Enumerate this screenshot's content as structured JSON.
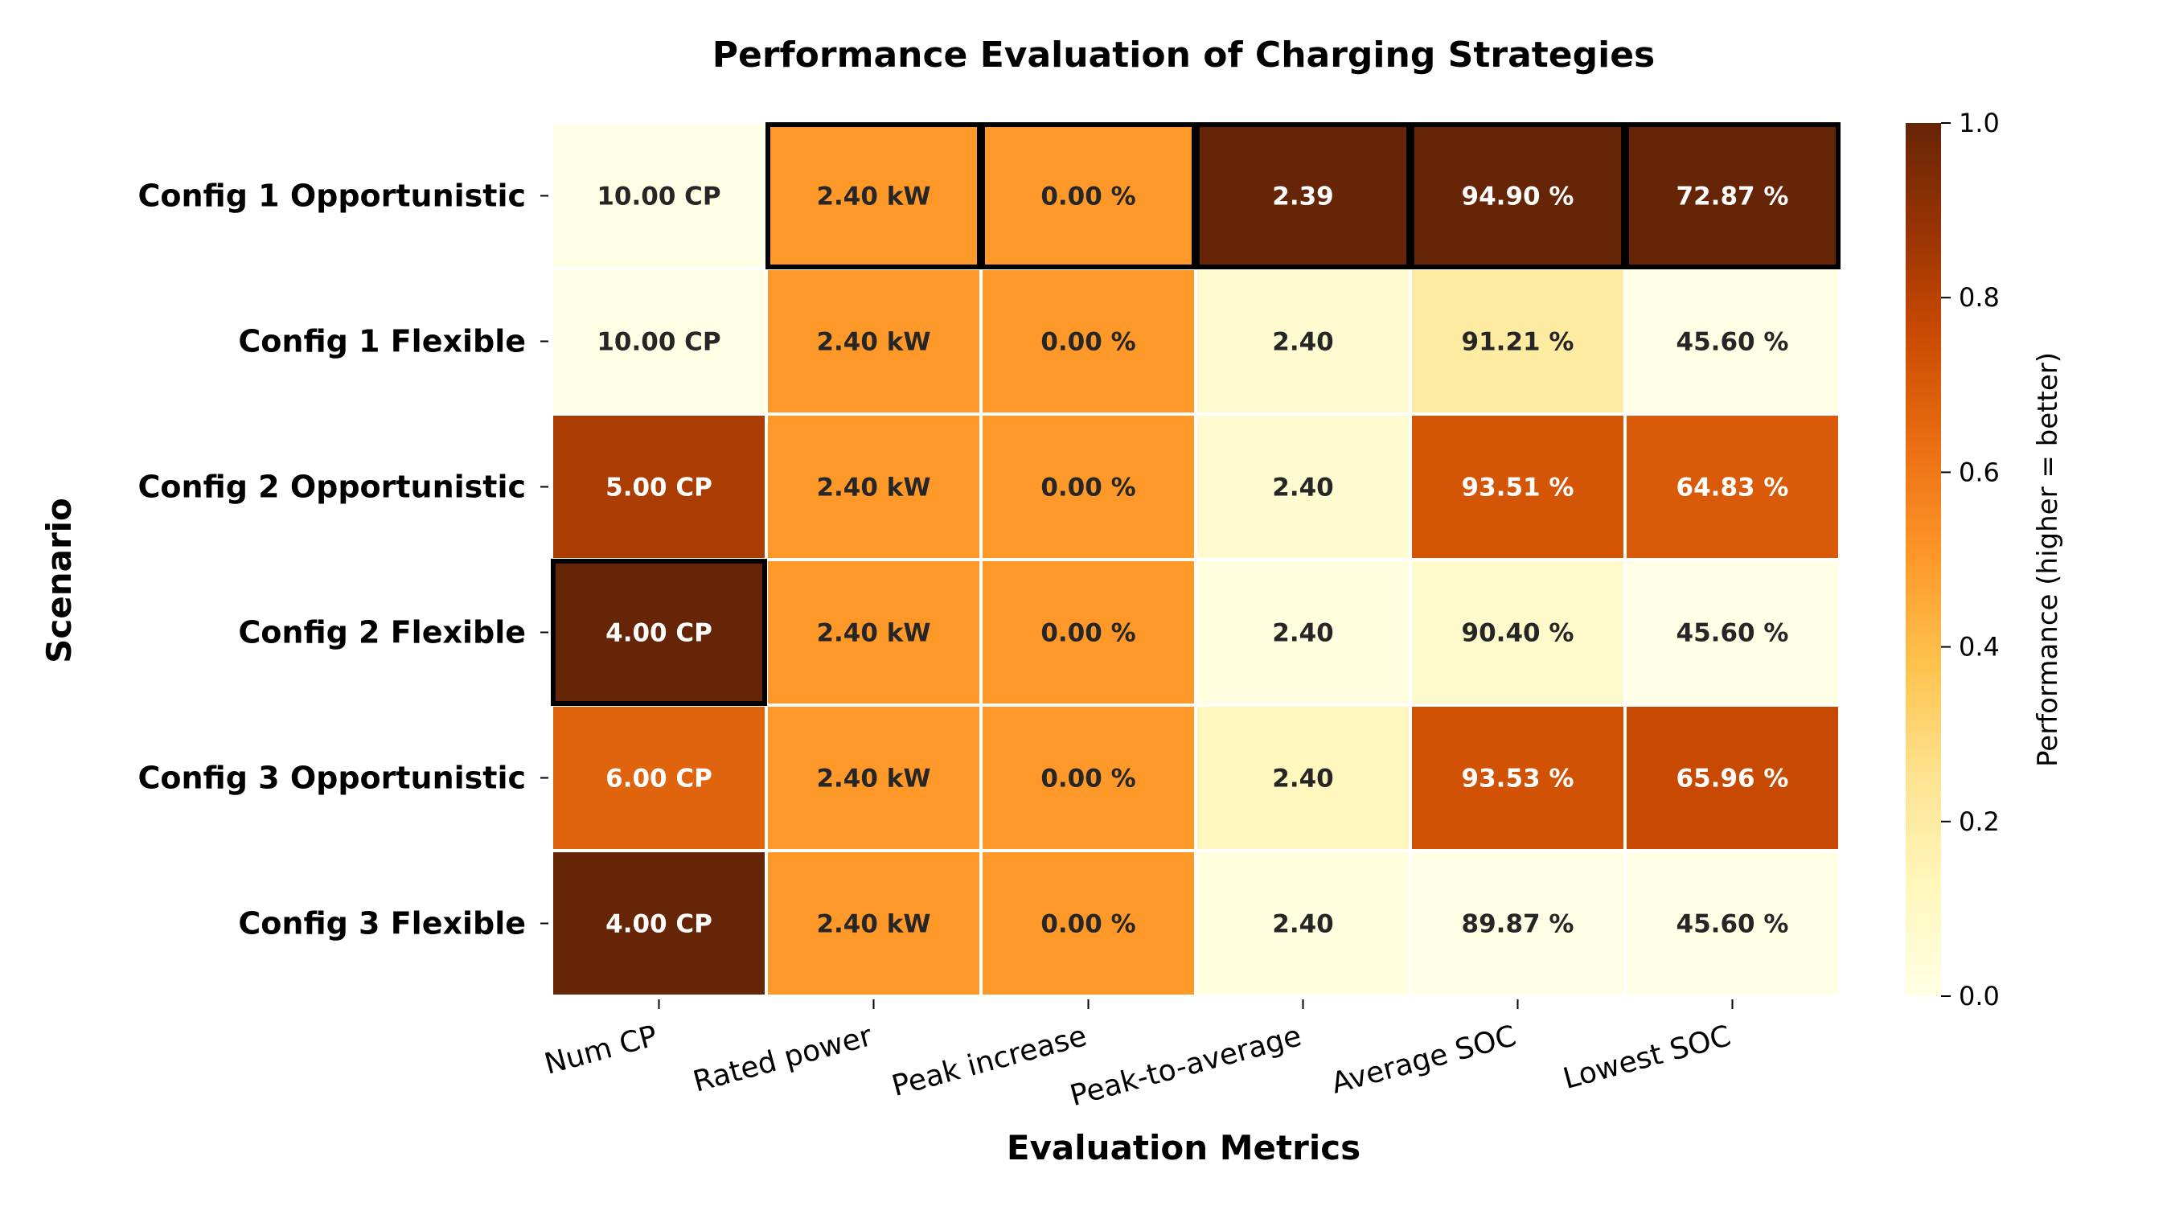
{
  "chart_data": {
    "type": "heatmap",
    "title": "Performance Evaluation of Charging Strategies",
    "xlabel": "Evaluation Metrics",
    "ylabel": "Scenario",
    "columns": [
      "Num CP",
      "Rated power",
      "Peak increase",
      "Peak-to-average",
      "Average SOC",
      "Lowest SOC"
    ],
    "rows": [
      "Config 1 Opportunistic",
      "Config 1 Flexible",
      "Config 2 Opportunistic",
      "Config 2 Flexible",
      "Config 3 Opportunistic",
      "Config 3 Flexible"
    ],
    "cell_labels": [
      [
        "10.00 CP",
        "2.40 kW",
        "0.00 %",
        "2.39",
        "94.90 %",
        "72.87 %"
      ],
      [
        "10.00 CP",
        "2.40 kW",
        "0.00 %",
        "2.40",
        "91.21 %",
        "45.60 %"
      ],
      [
        "5.00 CP",
        "2.40 kW",
        "0.00 %",
        "2.40",
        "93.51 %",
        "64.83 %"
      ],
      [
        "4.00 CP",
        "2.40 kW",
        "0.00 %",
        "2.40",
        "90.40 %",
        "45.60 %"
      ],
      [
        "6.00 CP",
        "2.40 kW",
        "0.00 %",
        "2.40",
        "93.53 %",
        "65.96 %"
      ],
      [
        "4.00 CP",
        "2.40 kW",
        "0.00 %",
        "2.40",
        "89.87 %",
        "45.60 %"
      ]
    ],
    "values": [
      [
        0.0,
        0.5,
        0.5,
        1.0,
        1.0,
        1.0
      ],
      [
        0.0,
        0.5,
        0.5,
        0.06,
        0.2,
        0.0
      ],
      [
        0.83,
        0.5,
        0.5,
        0.06,
        0.72,
        0.7
      ],
      [
        1.0,
        0.5,
        0.5,
        0.02,
        0.08,
        0.0
      ],
      [
        0.67,
        0.5,
        0.5,
        0.12,
        0.73,
        0.76
      ],
      [
        1.0,
        0.5,
        0.5,
        0.02,
        0.0,
        0.0
      ]
    ],
    "highlighted_best": [
      [
        0,
        1
      ],
      [
        0,
        2
      ],
      [
        0,
        3
      ],
      [
        0,
        4
      ],
      [
        0,
        5
      ],
      [
        3,
        0
      ]
    ],
    "colormap": "YlOrBr",
    "colorbar": {
      "label": "Performance (higher = better)",
      "ticks": [
        "0.0",
        "0.2",
        "0.4",
        "0.6",
        "0.8",
        "1.0"
      ],
      "range": [
        0,
        1
      ]
    }
  }
}
